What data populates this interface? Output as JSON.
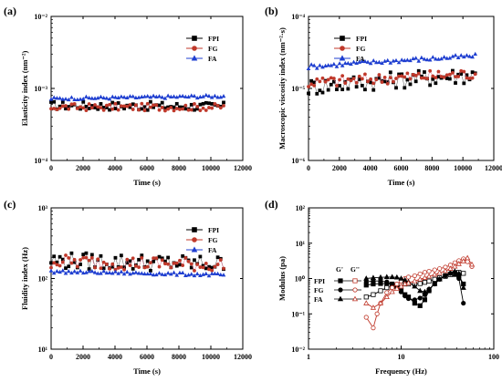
{
  "chart_data": [
    {
      "panel": "(a)",
      "type": "scatter",
      "ylabel": "Elasticity index (nm⁻²)",
      "xlabel": "Time (s)",
      "xlim": [
        0,
        12000
      ],
      "ylim": [
        0.0001,
        0.01
      ],
      "yscale": "log",
      "xticks": [
        "0",
        "2000",
        "4000",
        "6000",
        "8000",
        "10000",
        "12000"
      ],
      "yticks": [
        "10⁻⁴",
        "10⁻³",
        "10⁻²"
      ],
      "legend": "upper-right",
      "series": [
        {
          "name": "FPI",
          "color": "#000000",
          "marker": "square",
          "x_range": [
            0,
            10800
          ],
          "y_start": 0.00058,
          "y_end": 0.00056,
          "noise": 0.06
        },
        {
          "name": "FG",
          "color": "#c0392b",
          "marker": "circle",
          "x_range": [
            0,
            10800
          ],
          "y_start": 0.00055,
          "y_end": 0.00055,
          "noise": 0.05
        },
        {
          "name": "FA",
          "color": "#1f3fd0",
          "marker": "triangle",
          "x_range": [
            0,
            10800
          ],
          "y_start": 0.00072,
          "y_end": 0.00078,
          "noise": 0.02
        }
      ]
    },
    {
      "panel": "(b)",
      "type": "scatter",
      "ylabel": "Macroscopic viscosity index (nm⁻²·s)",
      "xlabel": "Time (s)",
      "xlim": [
        0,
        12000
      ],
      "ylim": [
        1e-06,
        0.0001
      ],
      "yscale": "log",
      "xticks": [
        "0",
        "2000",
        "4000",
        "6000",
        "8000",
        "10000",
        "12000"
      ],
      "yticks": [
        "10⁻⁶",
        "10⁻⁵",
        "10⁻⁴"
      ],
      "legend": "upper-left",
      "series": [
        {
          "name": "FPI",
          "color": "#000000",
          "marker": "square",
          "x_range": [
            0,
            10800
          ],
          "y_start": 1.05e-05,
          "y_end": 1.55e-05,
          "noise": 0.12
        },
        {
          "name": "FG",
          "color": "#c0392b",
          "marker": "circle",
          "x_range": [
            0,
            10800
          ],
          "y_start": 1.2e-05,
          "y_end": 1.6e-05,
          "noise": 0.08
        },
        {
          "name": "FA",
          "color": "#1f3fd0",
          "marker": "triangle",
          "x_range": [
            0,
            10800
          ],
          "y_start": 2e-05,
          "y_end": 2.8e-05,
          "noise": 0.03
        }
      ]
    },
    {
      "panel": "(c)",
      "type": "scatter",
      "ylabel": "Fluidity index (Hz)",
      "xlabel": "Time (s)",
      "xlim": [
        0,
        12000
      ],
      "ylim": [
        10,
        1000
      ],
      "yscale": "log",
      "xticks": [
        "0",
        "2000",
        "4000",
        "6000",
        "8000",
        "10000",
        "12000"
      ],
      "yticks": [
        "10¹",
        "10²",
        "10³"
      ],
      "legend": "upper-right",
      "series": [
        {
          "name": "FPI",
          "color": "#000000",
          "marker": "square",
          "x_range": [
            0,
            10800
          ],
          "y_start": 180,
          "y_end": 160,
          "noise": 0.12
        },
        {
          "name": "FG",
          "color": "#c0392b",
          "marker": "circle",
          "x_range": [
            0,
            10800
          ],
          "y_start": 175,
          "y_end": 155,
          "noise": 0.1
        },
        {
          "name": "FA",
          "color": "#1f3fd0",
          "marker": "triangle",
          "x_range": [
            0,
            10800
          ],
          "y_start": 125,
          "y_end": 112,
          "noise": 0.02
        }
      ]
    },
    {
      "panel": "(d)",
      "type": "line",
      "ylabel": "Modulus (pa)",
      "xlabel": "Frequency (Hz)",
      "xlim": [
        1,
        100
      ],
      "ylim": [
        0.01,
        100
      ],
      "xscale": "log",
      "yscale": "log",
      "xticks": [
        "1",
        "10",
        "100"
      ],
      "yticks": [
        "10⁻²",
        "10⁻¹",
        "10⁰",
        "10¹",
        "10²"
      ],
      "legend_header": [
        "G'",
        "G''"
      ],
      "legend_rows": [
        "FPI",
        "FG",
        "FA"
      ],
      "legend": "upper-left",
      "series": [
        {
          "name": "FPI G'",
          "color": "#000000",
          "marker": "square",
          "filled": true,
          "x": [
            4.2,
            5,
            6,
            7,
            8,
            9,
            10,
            11,
            12,
            14,
            16,
            18,
            20,
            23,
            26,
            30,
            34,
            38,
            42,
            47
          ],
          "y": [
            0.65,
            0.7,
            0.72,
            0.72,
            0.7,
            0.6,
            0.45,
            0.35,
            0.3,
            0.2,
            0.17,
            0.25,
            0.45,
            0.75,
            1.0,
            1.2,
            1.3,
            1.3,
            1.2,
            0.7
          ]
        },
        {
          "name": "FPI G''",
          "color": "#000000",
          "marker": "square",
          "filled": false,
          "x": [
            4.2,
            5,
            6,
            7,
            8,
            9,
            10,
            11,
            12,
            14,
            16,
            18,
            20,
            23,
            26,
            30,
            34,
            38,
            42,
            47
          ],
          "y": [
            0.3,
            0.35,
            0.45,
            0.55,
            0.6,
            0.65,
            0.7,
            0.7,
            0.7,
            0.7,
            0.72,
            0.78,
            0.85,
            0.95,
            1.05,
            1.15,
            1.3,
            1.45,
            1.5,
            1.4
          ]
        },
        {
          "name": "FG G'",
          "color": "#000000",
          "marker": "circle",
          "filled": true,
          "x": [
            4.2,
            5,
            6,
            7,
            8,
            9,
            10,
            11,
            12,
            14,
            16,
            18,
            20,
            23,
            26,
            30,
            34,
            38,
            42,
            47
          ],
          "y": [
            0.8,
            0.85,
            0.85,
            0.8,
            0.7,
            0.55,
            0.42,
            0.32,
            0.27,
            0.25,
            0.28,
            0.35,
            0.5,
            0.7,
            0.95,
            1.2,
            1.4,
            1.5,
            1.0,
            0.2
          ]
        },
        {
          "name": "FG G''",
          "color": "#c0392b",
          "marker": "circle",
          "filled": false,
          "x": [
            4.2,
            5,
            5.5,
            6,
            7,
            8,
            9,
            10,
            11,
            12,
            14,
            16,
            18,
            20,
            23,
            26,
            30,
            34,
            38,
            42,
            47,
            52,
            58
          ],
          "y": [
            0.08,
            0.04,
            0.1,
            0.2,
            0.4,
            0.55,
            0.7,
            0.85,
            1.0,
            1.1,
            1.2,
            1.35,
            1.5,
            1.6,
            1.75,
            1.9,
            2.1,
            2.4,
            2.8,
            3.2,
            3.6,
            3.0,
            2.2
          ]
        },
        {
          "name": "FA G'",
          "color": "#000000",
          "marker": "triangle",
          "filled": true,
          "x": [
            4.2,
            5,
            6,
            7,
            8,
            9,
            10,
            11,
            12,
            14,
            16,
            18,
            20,
            23,
            26,
            30,
            34,
            38,
            42,
            47
          ],
          "y": [
            1.0,
            1.05,
            1.08,
            1.1,
            1.1,
            1.08,
            1.0,
            0.9,
            0.8,
            0.6,
            0.45,
            0.42,
            0.5,
            0.7,
            0.95,
            1.2,
            1.45,
            1.6,
            1.4,
            0.55
          ]
        },
        {
          "name": "FA G''",
          "color": "#c0392b",
          "marker": "triangle",
          "filled": false,
          "x": [
            4.2,
            5,
            6,
            7,
            8,
            9,
            10,
            11,
            12,
            14,
            16,
            18,
            20,
            23,
            26,
            30,
            34,
            38,
            42,
            47,
            52,
            58
          ],
          "y": [
            0.2,
            0.15,
            0.2,
            0.3,
            0.42,
            0.52,
            0.6,
            0.7,
            0.75,
            0.85,
            0.95,
            1.05,
            1.15,
            1.3,
            1.45,
            1.65,
            1.9,
            2.2,
            2.6,
            3.1,
            3.8,
            2.5
          ]
        }
      ]
    }
  ]
}
